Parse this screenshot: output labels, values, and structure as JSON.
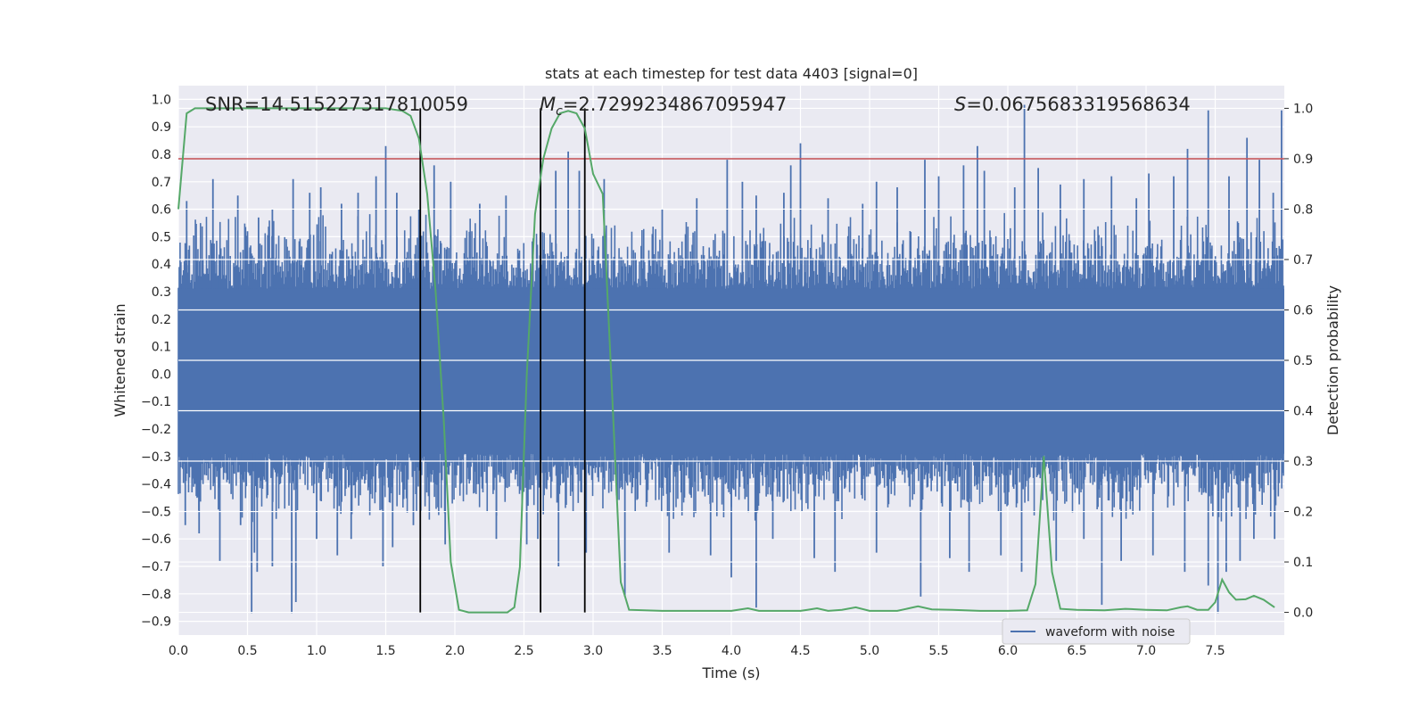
{
  "chart_data": {
    "type": "line",
    "title": "stats at each timestep for test data 4403 [signal=0]",
    "xlabel": "Time (s)",
    "ylabel": "Whitened strain",
    "ylabel_right": "Detection probability",
    "xlim": [
      0.0,
      8.0
    ],
    "ylim": [
      -0.95,
      1.05
    ],
    "ylim_right": [
      -0.045,
      1.045
    ],
    "x_ticks": [
      0.0,
      0.5,
      1.0,
      1.5,
      2.0,
      2.5,
      3.0,
      3.5,
      4.0,
      4.5,
      5.0,
      5.5,
      6.0,
      6.5,
      7.0,
      7.5
    ],
    "y_ticks": [
      -0.9,
      -0.8,
      -0.7,
      -0.6,
      -0.5,
      -0.4,
      -0.3,
      -0.2,
      -0.1,
      0.0,
      0.1,
      0.2,
      0.3,
      0.4,
      0.5,
      0.6,
      0.7,
      0.8,
      0.9,
      1.0
    ],
    "y_ticks_right": [
      0.0,
      0.1,
      0.2,
      0.3,
      0.4,
      0.5,
      0.6,
      0.7,
      0.8,
      0.9,
      1.0
    ],
    "grid": true,
    "legend": {
      "placement": "lower right",
      "entries": [
        "waveform with noise"
      ]
    },
    "annotations": {
      "snr": "SNR=14.515227317810059",
      "mc_symbol": "M",
      "mc_sub": "c",
      "mc_value": "=2.7299234867095947",
      "s_symbol": "S",
      "s_value": "=0.0675683319568634"
    },
    "threshold_right": 0.9,
    "vertical_lines_x": [
      1.75,
      2.62,
      2.94
    ],
    "waveform": {
      "name": "waveform with noise",
      "color": "#4c72b0",
      "x_range": [
        0.0,
        8.0
      ],
      "dense_band": [
        -0.29,
        0.31
      ],
      "typical_envelope": [
        -0.55,
        0.6
      ],
      "upper_spikes": [
        [
          0.06,
          0.63
        ],
        [
          0.25,
          0.71
        ],
        [
          0.43,
          0.65
        ],
        [
          0.5,
          0.52
        ],
        [
          0.58,
          0.57
        ],
        [
          0.68,
          0.6
        ],
        [
          0.83,
          0.71
        ],
        [
          0.95,
          0.66
        ],
        [
          1.03,
          0.68
        ],
        [
          1.18,
          0.62
        ],
        [
          1.3,
          0.66
        ],
        [
          1.43,
          0.72
        ],
        [
          1.5,
          0.83
        ],
        [
          1.58,
          0.66
        ],
        [
          1.74,
          0.6
        ],
        [
          1.85,
          0.76
        ],
        [
          1.97,
          0.7
        ],
        [
          2.18,
          0.62
        ],
        [
          2.37,
          0.65
        ],
        [
          2.62,
          0.78
        ],
        [
          2.73,
          0.74
        ],
        [
          2.82,
          0.81
        ],
        [
          2.9,
          0.74
        ],
        [
          3.08,
          0.71
        ],
        [
          3.5,
          0.6
        ],
        [
          3.75,
          0.64
        ],
        [
          3.97,
          0.78
        ],
        [
          4.08,
          0.7
        ],
        [
          4.18,
          0.65
        ],
        [
          4.38,
          0.66
        ],
        [
          4.43,
          0.76
        ],
        [
          4.5,
          0.84
        ],
        [
          4.7,
          0.64
        ],
        [
          4.95,
          0.62
        ],
        [
          5.05,
          0.7
        ],
        [
          5.2,
          0.68
        ],
        [
          5.4,
          0.78
        ],
        [
          5.5,
          0.72
        ],
        [
          5.68,
          0.76
        ],
        [
          5.78,
          0.83
        ],
        [
          5.83,
          0.74
        ],
        [
          6.05,
          0.68
        ],
        [
          6.12,
          0.98
        ],
        [
          6.22,
          0.75
        ],
        [
          6.38,
          0.69
        ],
        [
          6.55,
          0.71
        ],
        [
          6.75,
          0.72
        ],
        [
          6.93,
          0.64
        ],
        [
          7.02,
          0.73
        ],
        [
          7.2,
          0.72
        ],
        [
          7.3,
          0.82
        ],
        [
          7.45,
          0.96
        ],
        [
          7.6,
          0.72
        ],
        [
          7.73,
          0.86
        ],
        [
          7.82,
          0.78
        ],
        [
          7.92,
          0.66
        ],
        [
          7.98,
          0.96
        ]
      ],
      "lower_spikes": [
        [
          0.05,
          -0.55
        ],
        [
          0.15,
          -0.58
        ],
        [
          0.3,
          -0.68
        ],
        [
          0.45,
          -0.55
        ],
        [
          0.53,
          -0.87
        ],
        [
          0.55,
          -0.65
        ],
        [
          0.57,
          -0.72
        ],
        [
          0.68,
          -0.7
        ],
        [
          0.82,
          -0.87
        ],
        [
          0.85,
          -0.83
        ],
        [
          1.0,
          -0.6
        ],
        [
          1.15,
          -0.66
        ],
        [
          1.25,
          -0.6
        ],
        [
          1.48,
          -0.7
        ],
        [
          1.55,
          -0.63
        ],
        [
          1.7,
          -0.55
        ],
        [
          1.93,
          -0.62
        ],
        [
          2.3,
          -0.6
        ],
        [
          2.52,
          -0.62
        ],
        [
          2.6,
          -0.6
        ],
        [
          2.75,
          -0.7
        ],
        [
          2.95,
          -0.65
        ],
        [
          3.23,
          -0.81
        ],
        [
          3.55,
          -0.65
        ],
        [
          3.85,
          -0.66
        ],
        [
          4.0,
          -0.74
        ],
        [
          4.18,
          -0.85
        ],
        [
          4.3,
          -0.6
        ],
        [
          4.6,
          -0.67
        ],
        [
          4.75,
          -0.72
        ],
        [
          5.05,
          -0.65
        ],
        [
          5.37,
          -0.81
        ],
        [
          5.58,
          -0.67
        ],
        [
          5.72,
          -0.72
        ],
        [
          5.95,
          -0.66
        ],
        [
          6.1,
          -0.72
        ],
        [
          6.35,
          -0.68
        ],
        [
          6.55,
          -0.6
        ],
        [
          6.68,
          -0.84
        ],
        [
          6.82,
          -0.68
        ],
        [
          7.05,
          -0.66
        ],
        [
          7.28,
          -0.72
        ],
        [
          7.45,
          -0.77
        ],
        [
          7.52,
          -0.87
        ],
        [
          7.58,
          -0.72
        ],
        [
          7.68,
          -0.68
        ],
        [
          7.78,
          -0.6
        ],
        [
          7.93,
          -0.6
        ]
      ]
    },
    "probability": {
      "color": "#55a868",
      "points": [
        [
          0.0,
          0.8
        ],
        [
          0.06,
          0.99
        ],
        [
          0.12,
          1.0
        ],
        [
          0.3,
          1.0
        ],
        [
          0.5,
          1.0
        ],
        [
          0.7,
          1.0
        ],
        [
          0.9,
          1.0
        ],
        [
          1.1,
          1.0
        ],
        [
          1.3,
          1.0
        ],
        [
          1.5,
          1.0
        ],
        [
          1.62,
          0.995
        ],
        [
          1.68,
          0.985
        ],
        [
          1.74,
          0.94
        ],
        [
          1.8,
          0.83
        ],
        [
          1.86,
          0.64
        ],
        [
          1.92,
          0.38
        ],
        [
          1.97,
          0.1
        ],
        [
          2.03,
          0.005
        ],
        [
          2.1,
          0.0
        ],
        [
          2.2,
          0.0
        ],
        [
          2.3,
          0.0
        ],
        [
          2.38,
          0.0
        ],
        [
          2.43,
          0.01
        ],
        [
          2.47,
          0.09
        ],
        [
          2.52,
          0.47
        ],
        [
          2.58,
          0.79
        ],
        [
          2.64,
          0.9
        ],
        [
          2.7,
          0.96
        ],
        [
          2.76,
          0.99
        ],
        [
          2.82,
          0.995
        ],
        [
          2.88,
          0.99
        ],
        [
          2.94,
          0.96
        ],
        [
          3.0,
          0.87
        ],
        [
          3.07,
          0.83
        ],
        [
          3.14,
          0.42
        ],
        [
          3.2,
          0.06
        ],
        [
          3.26,
          0.005
        ],
        [
          3.5,
          0.003
        ],
        [
          3.8,
          0.003
        ],
        [
          4.0,
          0.003
        ],
        [
          4.12,
          0.008
        ],
        [
          4.2,
          0.003
        ],
        [
          4.5,
          0.003
        ],
        [
          4.55,
          0.005
        ],
        [
          4.62,
          0.008
        ],
        [
          4.7,
          0.003
        ],
        [
          4.8,
          0.005
        ],
        [
          4.9,
          0.01
        ],
        [
          5.0,
          0.003
        ],
        [
          5.2,
          0.003
        ],
        [
          5.35,
          0.012
        ],
        [
          5.45,
          0.006
        ],
        [
          5.6,
          0.005
        ],
        [
          5.8,
          0.003
        ],
        [
          6.0,
          0.003
        ],
        [
          6.14,
          0.004
        ],
        [
          6.2,
          0.056
        ],
        [
          6.26,
          0.31
        ],
        [
          6.32,
          0.08
        ],
        [
          6.38,
          0.007
        ],
        [
          6.5,
          0.005
        ],
        [
          6.7,
          0.004
        ],
        [
          6.85,
          0.007
        ],
        [
          7.0,
          0.005
        ],
        [
          7.15,
          0.004
        ],
        [
          7.25,
          0.01
        ],
        [
          7.3,
          0.012
        ],
        [
          7.37,
          0.005
        ],
        [
          7.45,
          0.005
        ],
        [
          7.5,
          0.02
        ],
        [
          7.55,
          0.065
        ],
        [
          7.6,
          0.04
        ],
        [
          7.65,
          0.025
        ],
        [
          7.72,
          0.026
        ],
        [
          7.78,
          0.033
        ],
        [
          7.85,
          0.025
        ],
        [
          7.93,
          0.01
        ]
      ]
    }
  }
}
